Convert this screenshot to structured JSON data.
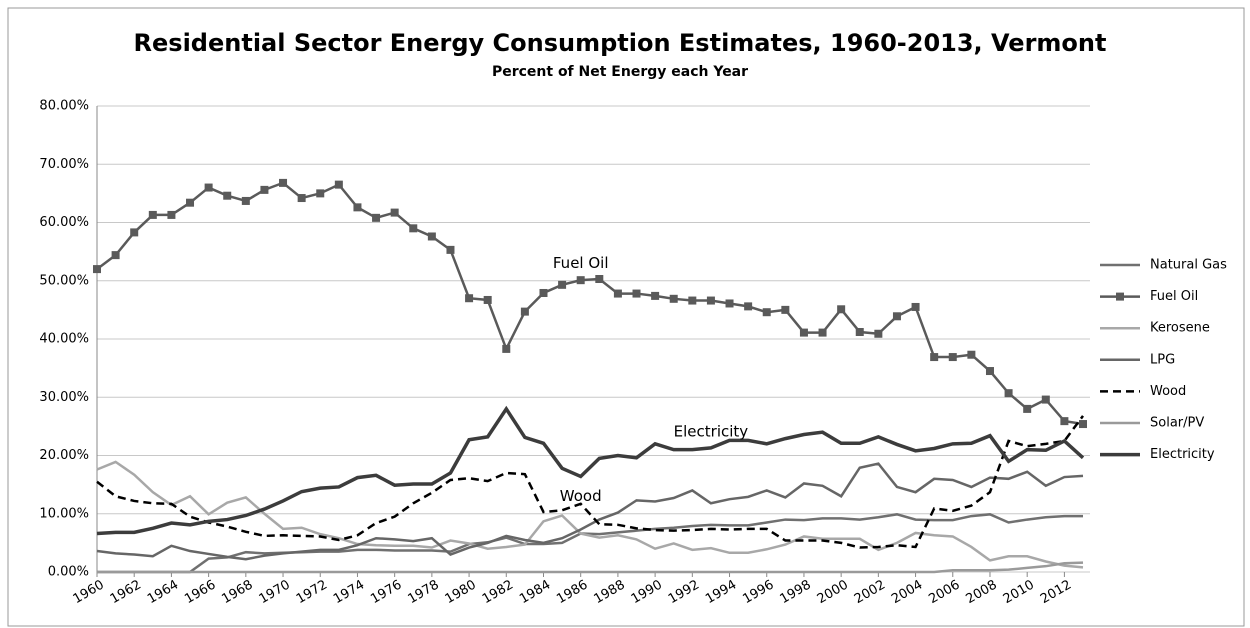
{
  "chart_data": {
    "type": "line",
    "title": "Residential Sector Energy Consumption Estimates, 1960-2013, Vermont",
    "subtitle": "Percent of Net Energy each Year",
    "x": [
      1960,
      1961,
      1962,
      1963,
      1964,
      1965,
      1966,
      1967,
      1968,
      1969,
      1970,
      1971,
      1972,
      1973,
      1974,
      1975,
      1976,
      1977,
      1978,
      1979,
      1980,
      1981,
      1982,
      1983,
      1984,
      1985,
      1986,
      1987,
      1988,
      1989,
      1990,
      1991,
      1992,
      1993,
      1994,
      1995,
      1996,
      1997,
      1998,
      1999,
      2000,
      2001,
      2002,
      2003,
      2004,
      2005,
      2006,
      2007,
      2008,
      2009,
      2010,
      2011,
      2012,
      2013
    ],
    "xlim": [
      1960,
      2013
    ],
    "xticks": [
      1960,
      1962,
      1964,
      1966,
      1968,
      1970,
      1972,
      1974,
      1976,
      1978,
      1980,
      1982,
      1984,
      1986,
      1988,
      1990,
      1992,
      1994,
      1996,
      1998,
      2000,
      2002,
      2004,
      2006,
      2008,
      2010,
      2012
    ],
    "ylim": [
      0,
      80
    ],
    "yticks": [
      {
        "value": 0,
        "label": "0.00%"
      },
      {
        "value": 10,
        "label": "10.00%"
      },
      {
        "value": 20,
        "label": "20.00%"
      },
      {
        "value": 30,
        "label": "30.00%"
      },
      {
        "value": 40,
        "label": "40.00%"
      },
      {
        "value": 50,
        "label": "50.00%"
      },
      {
        "value": 60,
        "label": "60.00%"
      },
      {
        "value": 70,
        "label": "70.00%"
      },
      {
        "value": 80,
        "label": "80.00%"
      }
    ],
    "grid": true,
    "legend": "right",
    "series": [
      {
        "name": "Natural Gas",
        "color": "#707070",
        "values": [
          0,
          0,
          0,
          0,
          0,
          0,
          2.3,
          2.5,
          3.4,
          3.2,
          3.3,
          3.4,
          3.5,
          3.5,
          3.8,
          3.8,
          3.7,
          3.7,
          3.7,
          3.5,
          4.8,
          5.1,
          5.9,
          4.8,
          4.8,
          5.0,
          6.6,
          6.5,
          6.8,
          7.1,
          7.4,
          7.6,
          7.9,
          8.1,
          8.0,
          8.0,
          8.5,
          9.0,
          8.9,
          9.2,
          9.2,
          9.0,
          9.4,
          9.9,
          9.0,
          8.9,
          8.9,
          9.6,
          9.9,
          8.5,
          9.0,
          9.4,
          9.6,
          9.6
        ]
      },
      {
        "name": "Fuel Oil",
        "color": "#5a5a5a",
        "marker": "square",
        "values": [
          52.0,
          54.4,
          58.3,
          61.3,
          61.3,
          63.4,
          66.0,
          64.6,
          63.7,
          65.6,
          66.8,
          64.2,
          65.0,
          66.5,
          62.6,
          60.8,
          61.7,
          59.0,
          57.6,
          55.3,
          47.0,
          46.7,
          38.3,
          44.7,
          47.9,
          49.3,
          50.1,
          50.3,
          47.8,
          47.8,
          47.4,
          46.9,
          46.6,
          46.6,
          46.1,
          45.6,
          44.6,
          45.0,
          41.1,
          41.1,
          45.1,
          41.2,
          40.9,
          43.9,
          45.5,
          36.9,
          36.9,
          37.3,
          34.5,
          30.7,
          28.0,
          29.6,
          25.9,
          25.4
        ]
      },
      {
        "name": "Kerosene",
        "color": "#a8a8a8",
        "values": [
          17.6,
          18.9,
          16.7,
          13.7,
          11.5,
          13.0,
          9.9,
          11.9,
          12.8,
          10.0,
          7.4,
          7.6,
          6.5,
          5.8,
          4.8,
          4.6,
          4.5,
          4.5,
          4.2,
          5.4,
          4.9,
          4.0,
          4.3,
          4.7,
          8.7,
          9.7,
          6.6,
          5.9,
          6.3,
          5.6,
          4.0,
          4.9,
          3.8,
          4.1,
          3.3,
          3.3,
          3.9,
          4.7,
          6.1,
          5.7,
          5.7,
          5.7,
          3.8,
          5.0,
          6.7,
          6.3,
          6.1,
          4.3,
          2.0,
          2.7,
          2.7,
          1.8,
          1.1,
          0.8
        ]
      },
      {
        "name": "LPG",
        "color": "#666666",
        "values": [
          3.6,
          3.2,
          3.0,
          2.7,
          4.5,
          3.6,
          3.1,
          2.6,
          2.2,
          2.8,
          3.2,
          3.5,
          3.8,
          3.8,
          4.6,
          5.8,
          5.6,
          5.3,
          5.8,
          3.0,
          4.2,
          5.0,
          6.2,
          5.5,
          5.0,
          5.8,
          7.3,
          9.0,
          10.2,
          12.3,
          12.1,
          12.7,
          14.0,
          11.8,
          12.5,
          12.9,
          14.0,
          12.8,
          15.2,
          14.8,
          13.0,
          17.9,
          18.6,
          14.6,
          13.7,
          16.0,
          15.8,
          14.6,
          16.2,
          16.0,
          17.2,
          14.8,
          16.3,
          16.5
        ]
      },
      {
        "name": "Wood",
        "color": "#000000",
        "dashed": true,
        "values": [
          15.5,
          13.0,
          12.2,
          11.8,
          11.7,
          9.5,
          8.5,
          7.8,
          6.9,
          6.2,
          6.3,
          6.2,
          6.1,
          5.5,
          6.3,
          8.4,
          9.5,
          11.8,
          13.6,
          15.8,
          16.1,
          15.6,
          17.0,
          16.8,
          10.3,
          10.6,
          11.7,
          8.2,
          8.1,
          7.5,
          7.2,
          7.1,
          7.2,
          7.4,
          7.3,
          7.4,
          7.4,
          5.4,
          5.4,
          5.4,
          5.0,
          4.2,
          4.3,
          4.6,
          4.3,
          10.9,
          10.5,
          11.4,
          13.7,
          22.5,
          21.6,
          22.0,
          22.5,
          26.8
        ]
      },
      {
        "name": "Solar/PV",
        "color": "#9a9a9a",
        "values": [
          0,
          0,
          0,
          0,
          0,
          0,
          0,
          0,
          0,
          0,
          0,
          0,
          0,
          0,
          0,
          0,
          0,
          0,
          0,
          0,
          0,
          0,
          0,
          0,
          0,
          0,
          0,
          0,
          0,
          0,
          0,
          0,
          0,
          0,
          0,
          0,
          0,
          0,
          0,
          0,
          0,
          0,
          0,
          0,
          0,
          0,
          0.3,
          0.3,
          0.3,
          0.4,
          0.7,
          1.0,
          1.5,
          1.6
        ]
      },
      {
        "name": "Electricity",
        "color": "#3c3c3c",
        "width": 3.5,
        "values": [
          6.6,
          6.8,
          6.8,
          7.5,
          8.4,
          8.1,
          8.7,
          9.0,
          9.7,
          10.8,
          12.2,
          13.8,
          14.4,
          14.6,
          16.2,
          16.6,
          14.9,
          15.1,
          15.1,
          17.0,
          22.7,
          23.2,
          28.0,
          23.1,
          22.1,
          17.8,
          16.4,
          19.5,
          20.0,
          19.6,
          22.0,
          21.0,
          21.0,
          21.3,
          22.6,
          22.6,
          22.0,
          22.9,
          23.6,
          24.0,
          22.1,
          22.1,
          23.2,
          21.9,
          20.8,
          21.2,
          22.0,
          22.1,
          23.4,
          19.0,
          21.0,
          20.9,
          22.5,
          19.6
        ]
      }
    ],
    "annotations": [
      {
        "text": "Fuel Oil",
        "x": 1986,
        "y": 53
      },
      {
        "text": "Electricity",
        "x": 1993,
        "y": 24
      },
      {
        "text": "Wood",
        "x": 1986,
        "y": 13
      }
    ]
  }
}
